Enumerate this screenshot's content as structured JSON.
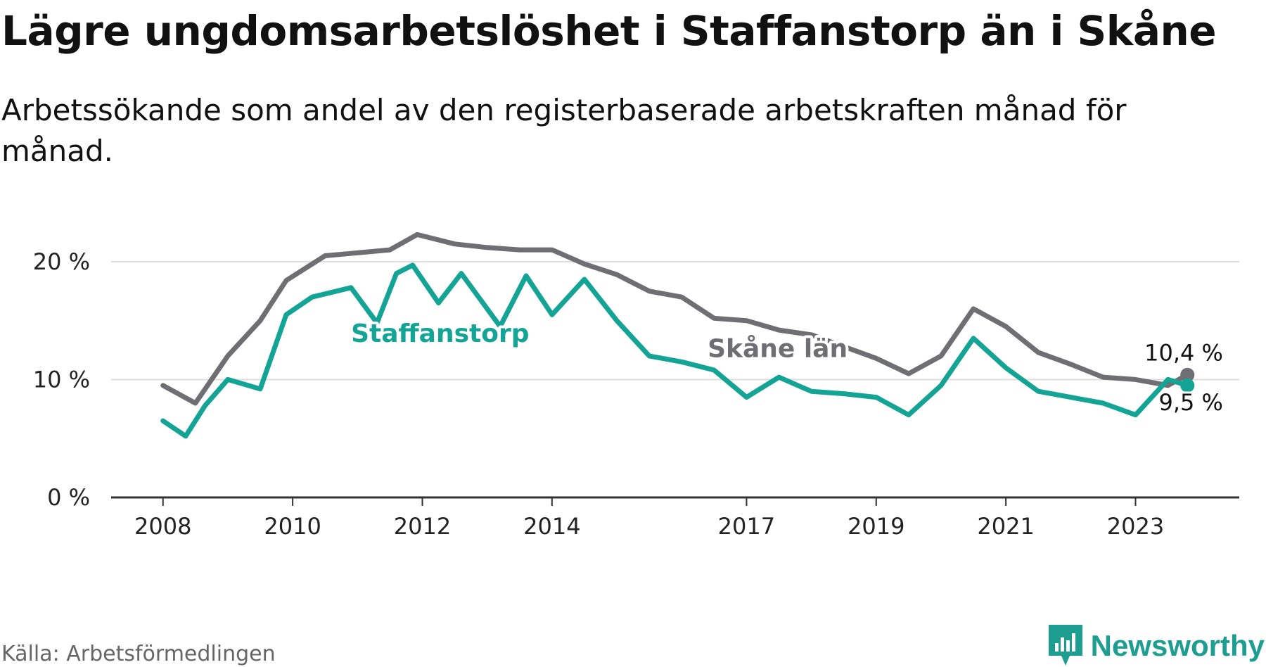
{
  "title": "Lägre ungdomsarbetslöshet i Staffanstorp än i Skåne",
  "subtitle": "Arbetssökande som andel av den registerbaserade arbetskraften månad för månad.",
  "source": "Källa: Arbetsförmedlingen",
  "brand": {
    "name": "Newsworthy",
    "logo_icon": "newsworthy-logo-icon",
    "color": "#1e9e91"
  },
  "colors": {
    "staffanstorp": "#14a496",
    "skane": "#6f6e73",
    "grid": "#dddddd",
    "axis": "#333333"
  },
  "chart_data": {
    "type": "line",
    "title": "Lägre ungdomsarbetslöshet i Staffanstorp än i Skåne",
    "xlabel": "",
    "ylabel": "",
    "ylim": [
      0,
      22.5
    ],
    "xlim": [
      2007.2,
      2024.6
    ],
    "yticks": [
      {
        "value": 0,
        "label": "0 %"
      },
      {
        "value": 10,
        "label": "10 %"
      },
      {
        "value": 20,
        "label": "20 %"
      }
    ],
    "xticks": [
      {
        "value": 2008,
        "label": "2008"
      },
      {
        "value": 2010,
        "label": "2010"
      },
      {
        "value": 2012,
        "label": "2012"
      },
      {
        "value": 2014,
        "label": "2014"
      },
      {
        "value": 2017,
        "label": "2017"
      },
      {
        "value": 2019,
        "label": "2019"
      },
      {
        "value": 2021,
        "label": "2021"
      },
      {
        "value": 2023,
        "label": "2023"
      }
    ],
    "grid": true,
    "series": [
      {
        "name": "Skåne län",
        "end_label": "10,4 %",
        "x": [
          2008.0,
          2008.5,
          2009.0,
          2009.5,
          2009.9,
          2010.5,
          2010.9,
          2011.5,
          2011.92,
          2012.5,
          2013.0,
          2013.5,
          2014.0,
          2014.5,
          2015.0,
          2015.5,
          2016.0,
          2016.5,
          2017.0,
          2017.5,
          2018.0,
          2018.5,
          2019.0,
          2019.5,
          2020.0,
          2020.5,
          2021.0,
          2021.5,
          2022.0,
          2022.5,
          2023.0,
          2023.5,
          2023.8
        ],
        "values": [
          9.5,
          8.0,
          12.0,
          15.0,
          18.4,
          20.5,
          20.7,
          21.0,
          22.3,
          21.5,
          21.2,
          21.0,
          21.0,
          19.8,
          18.9,
          17.5,
          17.0,
          15.2,
          15.0,
          14.2,
          13.8,
          12.8,
          11.8,
          10.5,
          12.0,
          16.0,
          14.5,
          12.3,
          11.3,
          10.2,
          10.0,
          9.5,
          10.4
        ]
      },
      {
        "name": "Staffanstorp",
        "end_label": "9,5 %",
        "x": [
          2008.0,
          2008.35,
          2008.65,
          2009.0,
          2009.5,
          2009.9,
          2010.3,
          2010.9,
          2011.3,
          2011.6,
          2011.85,
          2012.25,
          2012.6,
          2013.0,
          2013.2,
          2013.6,
          2014.0,
          2014.5,
          2015.0,
          2015.5,
          2016.0,
          2016.5,
          2017.0,
          2017.5,
          2018.0,
          2018.5,
          2019.0,
          2019.5,
          2020.0,
          2020.5,
          2021.0,
          2021.5,
          2022.0,
          2022.5,
          2023.0,
          2023.5,
          2023.8
        ],
        "values": [
          6.5,
          5.2,
          7.8,
          10.0,
          9.2,
          15.5,
          17.0,
          17.8,
          14.8,
          19.0,
          19.7,
          16.5,
          19.0,
          16.0,
          14.5,
          18.8,
          15.5,
          18.5,
          15.0,
          12.0,
          11.5,
          10.8,
          8.5,
          10.2,
          9.0,
          8.8,
          8.5,
          7.0,
          9.5,
          13.5,
          11.0,
          9.0,
          8.5,
          8.0,
          7.0,
          10.0,
          9.5
        ]
      }
    ],
    "annotations": [
      {
        "text": "Staffanstorp",
        "series": "Staffanstorp"
      },
      {
        "text": "Skåne län",
        "series": "Skåne län"
      }
    ]
  }
}
